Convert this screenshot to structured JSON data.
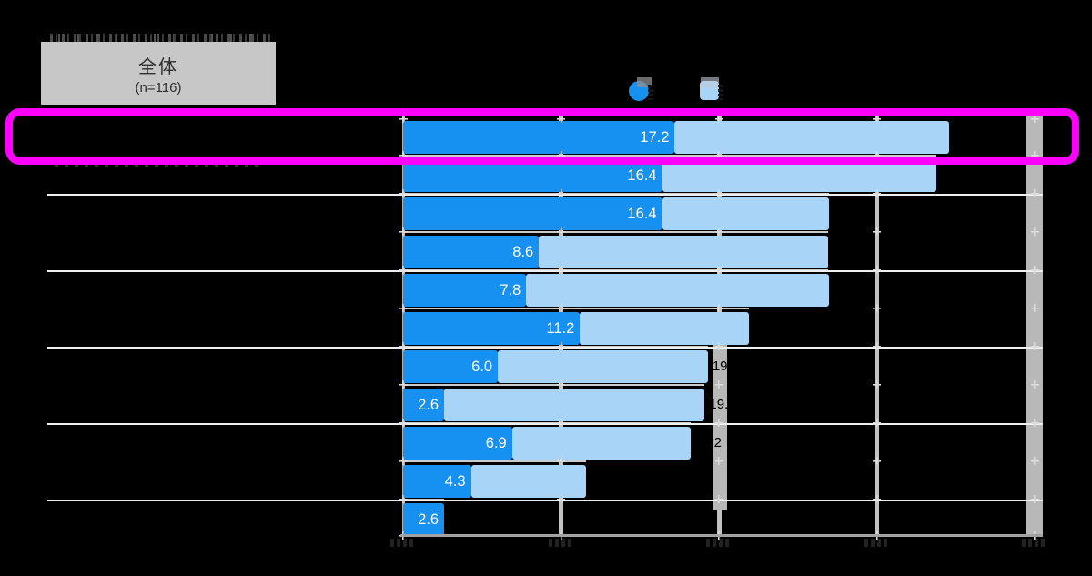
{
  "background_color": "#000000",
  "group_box": {
    "title": "全体",
    "subtitle": "(n=116)"
  },
  "legend": {
    "items": [
      {
        "name": "series-1",
        "marker": "circle",
        "color": "#1791f1",
        "label": ""
      },
      {
        "name": "series-2",
        "marker": "square",
        "color": "#a8d4f8",
        "label": ""
      }
    ]
  },
  "highlight": {
    "color": "#ff00ff",
    "row_index": 0
  },
  "chart_data": {
    "type": "bar",
    "orientation": "horizontal",
    "stacked": true,
    "n_label": "(n=116)",
    "categories": [
      "",
      "",
      "",
      "",
      "",
      "",
      "",
      "",
      "",
      "",
      ""
    ],
    "series": [
      {
        "name": "primary-dark-blue",
        "color": "#1791f1",
        "values": [
          17.2,
          16.4,
          16.4,
          8.6,
          7.8,
          11.2,
          6.0,
          2.6,
          6.9,
          4.3,
          2.6
        ],
        "labels_visible": true
      },
      {
        "name": "secondary-light-blue",
        "color": "#a8d4f8",
        "values": [
          17.4,
          17.4,
          10.6,
          18.3,
          19.2,
          10.7,
          13.3,
          16.5,
          11.3,
          7.3,
          0
        ],
        "values_estimated_from_pixels": true
      }
    ],
    "totals_estimated": [
      34.6,
      33.8,
      27.0,
      26.9,
      27.0,
      21.9,
      19.3,
      19.1,
      18.2,
      11.6,
      2.6
    ],
    "xlim": [
      0,
      40
    ],
    "gridline_step": 10,
    "grid": true,
    "axis_tick_labels_visible": false,
    "category_labels_visible": false
  }
}
